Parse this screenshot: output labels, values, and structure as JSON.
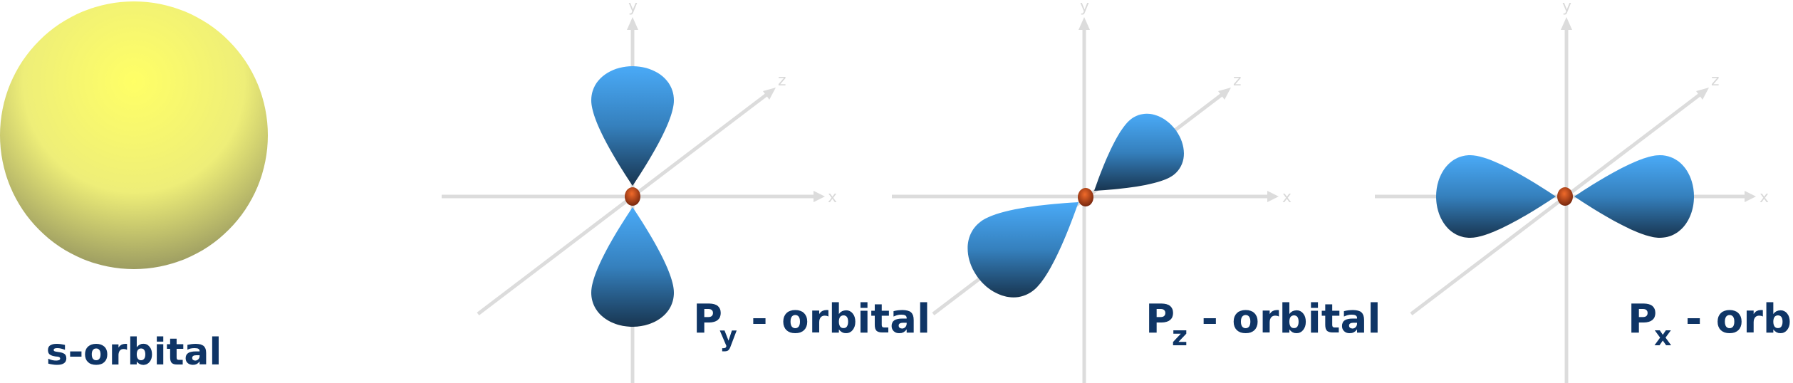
{
  "colors": {
    "label": "#0f3566",
    "axis": "#dcdcdc",
    "lobe_light": "#4aaaf7",
    "lobe_mid": "#3580bd",
    "lobe_dark": "#183550",
    "sphere_light": "#ffff66",
    "sphere_mid": "#eeee78",
    "sphere_dark": "#8f8f5e",
    "nucleus_light": "#f06a2a",
    "nucleus_dark": "#6e220c"
  },
  "panels": [
    {
      "id": "s",
      "label": "s-orbital"
    },
    {
      "id": "py",
      "label_main": "P",
      "label_sub": "y",
      "label_rest": " - orbital",
      "axes": {
        "x": "x",
        "y": "y",
        "z": "z"
      }
    },
    {
      "id": "pz",
      "label_main": "P",
      "label_sub": "z",
      "label_rest": " - orbital",
      "axes": {
        "x": "x",
        "y": "y",
        "z": "z"
      }
    },
    {
      "id": "px",
      "label_main": "P",
      "label_sub": "x",
      "label_rest": " - orbital",
      "axes": {
        "x": "x",
        "y": "y",
        "z": "z"
      }
    }
  ]
}
